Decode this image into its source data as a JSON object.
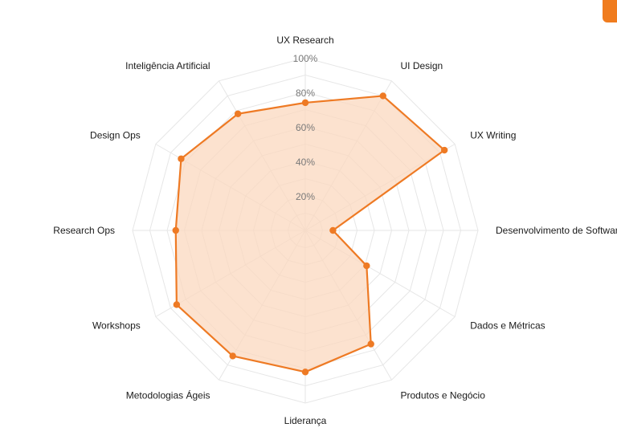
{
  "colors": {
    "accent": "#ee7a24",
    "fill": "#fbd8bf",
    "grid": "#e6e6e6",
    "tick_label": "#7a7a7a",
    "axis_label": "#1a1a1a"
  },
  "chart_data": {
    "type": "radar",
    "title": "",
    "r_range": [
      0,
      100
    ],
    "tick_values": [
      20,
      40,
      60,
      80,
      100
    ],
    "tick_labels": [
      "20%",
      "40%",
      "60%",
      "80%",
      "100%"
    ],
    "grid": true,
    "categories": [
      "UX Research",
      "UI Design",
      "UX Writing",
      "Desenvolvimento de Software",
      "Dados e Métricas",
      "Produtos e Negócio",
      "Liderança",
      "Metodologias Ágeis",
      "Workshops",
      "Research Ops",
      "Design Ops",
      "Inteligência Artificial"
    ],
    "series": [
      {
        "values": [
          74,
          90,
          93,
          16,
          41,
          76,
          82,
          84,
          86,
          75,
          83,
          78
        ]
      }
    ]
  }
}
